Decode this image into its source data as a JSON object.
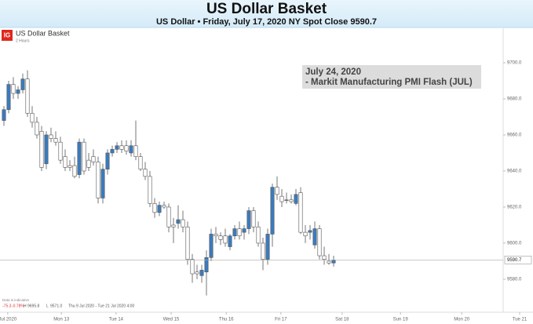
{
  "chart_data": {
    "type": "candlestick",
    "title": "US Dollar Basket",
    "subtitle": "US Dollar • Friday, July 17, 2020 NY Spot Close 9590.7",
    "instrument": "US Dollar Basket",
    "interval": "2 Hours",
    "logo": "IG",
    "annotation": [
      "July 24, 2020",
      "- Markit Manufacturing PMI Flash (JUL)"
    ],
    "disclaimer": "Data is indicative",
    "info": [
      "-75.3",
      "-0.78%",
      "H",
      "9695.8",
      "L",
      "9571.0",
      "Thu 9 Jul 2020 - Tue 21 Jul 2020 4:00"
    ],
    "up_color": "#3a7bbf",
    "down_color": "#ffffff",
    "last_close": 9590.7,
    "ylim": [
      9563,
      9717.4
    ],
    "yticks": [
      {
        "value": 9580,
        "label": "9580.0"
      },
      {
        "value": 9600,
        "label": "9600.0"
      },
      {
        "value": 9620,
        "label": "9620.0"
      },
      {
        "value": 9640,
        "label": "9640.0"
      },
      {
        "value": 9660,
        "label": "9660.0"
      },
      {
        "value": 9680,
        "label": "9680.0"
      },
      {
        "value": 9700,
        "label": "9700.0"
      }
    ],
    "xlim": [
      0,
      110
    ],
    "xticks": [
      {
        "value": 1.3,
        "label": "Jul 2020"
      },
      {
        "value": 12.7,
        "label": "Mon 13"
      },
      {
        "value": 24.3,
        "label": "Tue 14"
      },
      {
        "value": 36,
        "label": "Wed 15"
      },
      {
        "value": 47.7,
        "label": "Thu 16"
      },
      {
        "value": 59.3,
        "label": "Fri 17"
      },
      {
        "value": 72.3,
        "label": "Sat 18"
      },
      {
        "value": 84.7,
        "label": "Sun 19"
      },
      {
        "value": 97.7,
        "label": "Mon 20"
      },
      {
        "value": 110,
        "label": "Tue 21"
      }
    ],
    "series": {
      "open": [
        9668,
        9674,
        9688,
        9683,
        9685,
        9691,
        9672,
        9667,
        9662,
        9644,
        9660,
        9658,
        9656,
        9648,
        9643,
        9643,
        9638,
        9656,
        9646,
        9648,
        9645,
        9625,
        9641,
        9650,
        9652,
        9654,
        9654,
        9650,
        9654,
        9648,
        9641,
        9637,
        9622,
        9617,
        9621,
        9620,
        9610,
        9611,
        9613,
        9609,
        9591,
        9584,
        9582,
        9584,
        9592,
        9605,
        9604,
        9604,
        9598,
        9604,
        9608,
        9606,
        9608,
        9618,
        9609,
        9600,
        9591,
        9605,
        9631,
        9626,
        9624,
        9624,
        9622,
        9628,
        9606,
        9606,
        9599,
        9608,
        9593,
        9590,
        9589
      ],
      "high": [
        9676,
        9690,
        9692,
        9687,
        9694,
        9695.8,
        9676,
        9670,
        9665,
        9662,
        9664,
        9662,
        9659,
        9652,
        9646,
        9648,
        9658,
        9658,
        9650,
        9652,
        9648,
        9644,
        9652,
        9654,
        9656,
        9657,
        9657,
        9657,
        9668,
        9650,
        9645,
        9640,
        9625,
        9623,
        9623,
        9622,
        9614,
        9621,
        9618,
        9612,
        9594,
        9588,
        9588,
        9596,
        9608,
        9609,
        9606,
        9608,
        9605,
        9610,
        9612,
        9610,
        9620,
        9620,
        9612,
        9603,
        9608,
        9633,
        9637,
        9630,
        9628,
        9627,
        9630,
        9631,
        9610,
        9610,
        9612,
        9610,
        9598,
        9594,
        9593
      ],
      "low": [
        9665,
        9672,
        9680,
        9680,
        9683,
        9670,
        9664,
        9658,
        9640,
        9641,
        9656,
        9654,
        9644,
        9640,
        9640,
        9636,
        9636,
        9638,
        9640,
        9643,
        9622,
        9622,
        9638,
        9648,
        9650,
        9650,
        9649,
        9648,
        9646,
        9640,
        9635,
        9620,
        9614,
        9615,
        9619,
        9606,
        9600,
        9608,
        9606,
        9588,
        9578,
        9580,
        9578,
        9571,
        9590,
        9600,
        9599,
        9598,
        9596,
        9602,
        9602,
        9602,
        9605,
        9606,
        9598,
        9585,
        9588,
        9598,
        9624,
        9620,
        9622,
        9622,
        9621,
        9605,
        9600,
        9602,
        9597,
        9591,
        9588,
        9588,
        9587
      ],
      "close": [
        9674,
        9688,
        9683,
        9685,
        9691,
        9672,
        9667,
        9660,
        9642,
        9660,
        9658,
        9656,
        9646,
        9642,
        9642,
        9637,
        9656,
        9640,
        9642,
        9645,
        9625,
        9641,
        9650,
        9652,
        9654,
        9652,
        9651,
        9654,
        9648,
        9641,
        9637,
        9622,
        9617,
        9621,
        9620,
        9609,
        9609,
        9613,
        9609,
        9591,
        9583,
        9583,
        9585,
        9592,
        9605,
        9604,
        9602,
        9600,
        9604,
        9608,
        9604,
        9608,
        9618,
        9609,
        9600,
        9591,
        9605,
        9631,
        9627,
        9623,
        9624,
        9623,
        9627,
        9606,
        9604,
        9607,
        9608,
        9593,
        9591,
        9589,
        9590.7
      ]
    }
  }
}
